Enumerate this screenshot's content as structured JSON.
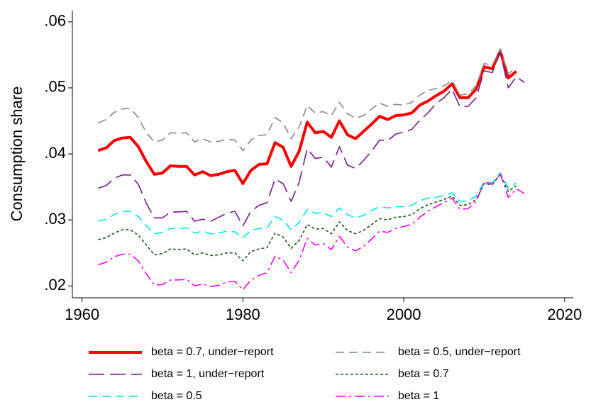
{
  "chart_data": {
    "type": "line",
    "y_label": "Consumption share",
    "x": [
      1962,
      1963,
      1964,
      1965,
      1966,
      1967,
      1968,
      1969,
      1970,
      1971,
      1972,
      1973,
      1974,
      1975,
      1976,
      1977,
      1978,
      1979,
      1980,
      1981,
      1982,
      1983,
      1984,
      1985,
      1986,
      1987,
      1988,
      1989,
      1990,
      1991,
      1992,
      1993,
      1994,
      1995,
      1996,
      1997,
      1998,
      1999,
      2000,
      2001,
      2002,
      2003,
      2004,
      2005,
      2006,
      2007,
      2008,
      2009,
      2010,
      2011,
      2012,
      2013,
      2014,
      2015
    ],
    "xlim": [
      1958.8,
      2020.9
    ],
    "xticks": [
      1960,
      1980,
      2000,
      2020
    ],
    "ylim": [
      0.0182,
      0.0617
    ],
    "yticks": [
      {
        "value": 0.02,
        "label": ".02"
      },
      {
        "value": 0.03,
        "label": ".03"
      },
      {
        "value": 0.04,
        "label": ".04"
      },
      {
        "value": 0.05,
        "label": ".05"
      },
      {
        "value": 0.06,
        "label": ".06"
      }
    ],
    "grid": false,
    "series": [
      {
        "name": "beta = 0.7, under−report",
        "color": "#ff0000",
        "dash": "solid",
        "values": [
          0.0405,
          0.0409,
          0.042,
          0.0424,
          0.0425,
          0.0411,
          0.0388,
          0.0369,
          0.0371,
          0.0382,
          0.0381,
          0.0381,
          0.0368,
          0.0373,
          0.0367,
          0.0369,
          0.0373,
          0.0375,
          0.0355,
          0.0375,
          0.0384,
          0.0385,
          0.0417,
          0.041,
          0.0381,
          0.0404,
          0.0448,
          0.0432,
          0.0434,
          0.0425,
          0.045,
          0.0429,
          0.0423,
          0.0434,
          0.0445,
          0.0457,
          0.0452,
          0.0458,
          0.0459,
          0.0462,
          0.0474,
          0.048,
          0.0488,
          0.0495,
          0.0506,
          0.0485,
          0.0485,
          0.0498,
          0.0532,
          0.0529,
          0.0556,
          0.0515,
          0.0525,
          null
        ]
      },
      {
        "name": "beta = 0.5, under−report",
        "color": "#7f8c7f",
        "dash": "dash",
        "values": [
          0.0447,
          0.0452,
          0.0463,
          0.0468,
          0.0469,
          0.0455,
          0.0432,
          0.0418,
          0.0421,
          0.0432,
          0.0431,
          0.0432,
          0.0418,
          0.0423,
          0.0418,
          0.0419,
          0.0422,
          0.0421,
          0.0405,
          0.0421,
          0.0428,
          0.0429,
          0.0455,
          0.0447,
          0.0423,
          0.0441,
          0.0473,
          0.0462,
          0.0464,
          0.0458,
          0.0478,
          0.0461,
          0.0454,
          0.0458,
          0.0468,
          0.0477,
          0.0472,
          0.0475,
          0.0474,
          0.0478,
          0.0489,
          0.0496,
          0.0499,
          0.0503,
          0.0511,
          0.0489,
          0.0491,
          0.0503,
          0.0537,
          0.0534,
          0.0559,
          0.0521,
          0.0531,
          null
        ]
      },
      {
        "name": "beta = 1, under−report",
        "color": "#7a1a8a",
        "dash": "longdash",
        "values": [
          0.0348,
          0.0352,
          0.0363,
          0.0368,
          0.0368,
          0.0354,
          0.0325,
          0.0303,
          0.0303,
          0.0312,
          0.0312,
          0.0313,
          0.0298,
          0.0301,
          0.0298,
          0.0304,
          0.031,
          0.0313,
          0.0291,
          0.0313,
          0.0322,
          0.0326,
          0.0362,
          0.0355,
          0.0328,
          0.0357,
          0.0408,
          0.0393,
          0.0395,
          0.038,
          0.0411,
          0.0383,
          0.0378,
          0.039,
          0.0404,
          0.0421,
          0.042,
          0.043,
          0.0433,
          0.0437,
          0.0451,
          0.0462,
          0.0476,
          0.0485,
          0.0498,
          0.0471,
          0.0472,
          0.0485,
          0.0526,
          0.0523,
          0.0554,
          0.05,
          0.0517,
          0.0508
        ]
      },
      {
        "name": "beta = 0.7",
        "color": "#1a5c1a",
        "dash": "shortdash",
        "values": [
          0.027,
          0.0273,
          0.028,
          0.0285,
          0.0285,
          0.0277,
          0.0262,
          0.0247,
          0.0249,
          0.0256,
          0.0255,
          0.0256,
          0.0247,
          0.025,
          0.0246,
          0.0247,
          0.025,
          0.025,
          0.0238,
          0.0252,
          0.0256,
          0.0258,
          0.028,
          0.0274,
          0.0257,
          0.0269,
          0.0293,
          0.0286,
          0.0287,
          0.0279,
          0.0297,
          0.0284,
          0.0279,
          0.0284,
          0.0293,
          0.0302,
          0.03,
          0.0304,
          0.0305,
          0.0308,
          0.0317,
          0.0323,
          0.0327,
          0.0331,
          0.0336,
          0.0322,
          0.0323,
          0.0331,
          0.0355,
          0.0353,
          0.0369,
          0.0343,
          0.0352,
          null
        ]
      },
      {
        "name": "beta = 0.5",
        "color": "#00e5ee",
        "dash": "dash",
        "values": [
          0.0298,
          0.0301,
          0.0308,
          0.0313,
          0.0313,
          0.0305,
          0.0291,
          0.0279,
          0.0281,
          0.0287,
          0.0287,
          0.0288,
          0.028,
          0.0283,
          0.0279,
          0.028,
          0.0283,
          0.0282,
          0.0273,
          0.0284,
          0.0287,
          0.0288,
          0.0305,
          0.03,
          0.0285,
          0.0296,
          0.0316,
          0.031,
          0.0311,
          0.0305,
          0.0318,
          0.0308,
          0.0303,
          0.0307,
          0.0314,
          0.032,
          0.0318,
          0.032,
          0.032,
          0.0322,
          0.0329,
          0.0333,
          0.0334,
          0.0337,
          0.0341,
          0.0328,
          0.0329,
          0.0336,
          0.0358,
          0.0356,
          0.0371,
          0.0348,
          0.0356,
          null
        ]
      },
      {
        "name": "beta = 1",
        "color": "#ff00ff",
        "dash": "dashdot",
        "values": [
          0.0232,
          0.0236,
          0.0244,
          0.0248,
          0.0248,
          0.0238,
          0.0218,
          0.0201,
          0.0202,
          0.0209,
          0.0209,
          0.021,
          0.02,
          0.0203,
          0.0199,
          0.0201,
          0.0206,
          0.0207,
          0.0194,
          0.0209,
          0.0216,
          0.022,
          0.0245,
          0.0239,
          0.022,
          0.0239,
          0.0272,
          0.0262,
          0.0264,
          0.0255,
          0.0275,
          0.0259,
          0.0253,
          0.026,
          0.0271,
          0.0283,
          0.0281,
          0.0287,
          0.029,
          0.0293,
          0.0304,
          0.0313,
          0.032,
          0.0326,
          0.0333,
          0.0316,
          0.0317,
          0.0328,
          0.0357,
          0.0354,
          0.037,
          0.0334,
          0.0347,
          0.034
        ]
      }
    ]
  }
}
